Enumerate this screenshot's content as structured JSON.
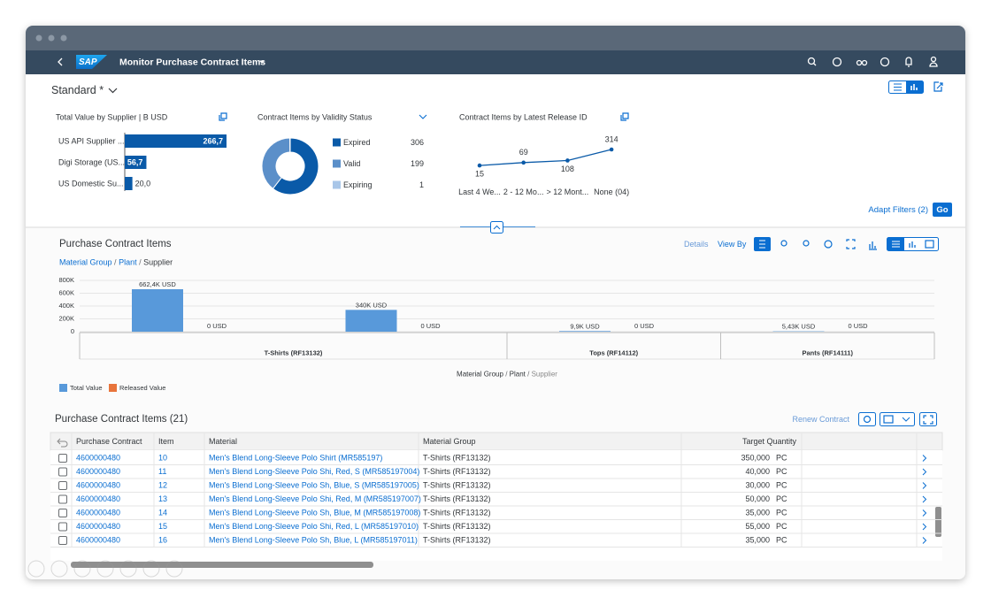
{
  "shell": {
    "logo": "SAP",
    "title": "Monitor Purchase Contract Items"
  },
  "header": {
    "variant": "Standard *",
    "adapt_filters": "Adapt Filters (2)",
    "go": "Go"
  },
  "cards": [
    {
      "title": "Total Value by Supplier  | B USD",
      "categories": [
        "US API Supplier ...",
        "Digi Storage (US...",
        "US Domestic Su..."
      ],
      "values": [
        266.7,
        56.7,
        20.0
      ],
      "value_labels": [
        "266,7",
        "56,7",
        "20,0"
      ],
      "color": "#0a5aa8"
    },
    {
      "title": "Contract Items by Validity Status",
      "categories": [
        "Expired",
        "Valid",
        "Expiring"
      ],
      "values": [
        306,
        199,
        1
      ],
      "colors": [
        "#0a5aa8",
        "#5b8fc9",
        "#a9c6e8"
      ]
    },
    {
      "title": "Contract Items by Latest Release ID",
      "categories": [
        "Last 4 We...",
        "2 - 12 Mo...",
        "> 12 Mont...",
        "None (04)"
      ],
      "values": [
        15,
        69,
        108,
        314
      ],
      "color": "#0a5aa8"
    }
  ],
  "chart": {
    "title": "Purchase Contract Items",
    "breadcrumb": [
      "Material Group",
      "Plant",
      "Supplier"
    ],
    "separator": "/",
    "toolbar": {
      "details": "Details",
      "view_by": "View By"
    },
    "ylim": [
      0,
      800000
    ],
    "yticks": [
      0,
      {
        "value": 200000,
        "label": "200K"
      },
      {
        "value": 400000,
        "label": "400K"
      },
      {
        "value": 600000,
        "label": "600K"
      },
      {
        "value": 800000,
        "label": "800K"
      }
    ],
    "grid": true,
    "series": [
      {
        "name": "Total Value",
        "color": "#5899da"
      },
      {
        "name": "Released Value",
        "color": "#e8743b"
      }
    ],
    "groups": [
      {
        "label": "T-Shirts (RF13132)",
        "total": [
          662400,
          340000
        ],
        "total_labels": [
          "662,4K USD",
          "340K USD"
        ],
        "released": [
          0,
          0
        ],
        "released_labels": [
          "0 USD",
          "0 USD"
        ]
      },
      {
        "label": "Tops (RF14112)",
        "total": [
          9900
        ],
        "total_labels": [
          "9,9K USD"
        ],
        "released": [
          0
        ],
        "released_labels": [
          "0 USD"
        ]
      },
      {
        "label": "Pants (RF14111)",
        "total": [
          5430
        ],
        "total_labels": [
          "5,43K USD"
        ],
        "released": [
          0
        ],
        "released_labels": [
          "0 USD"
        ]
      }
    ]
  },
  "table": {
    "title": "Purchase Contract Items (21)",
    "action": "Renew Contract",
    "columns": [
      "Purchase Contract",
      "Item",
      "Material",
      "Material Group",
      "Target Quantity"
    ],
    "rows": [
      [
        "4600000480",
        "10",
        "Men's Blend Long-Sleeve Polo Shirt (MR585197)",
        "T-Shirts (RF13132)",
        "350,000",
        "PC"
      ],
      [
        "4600000480",
        "11",
        "Men's Blend Long-Sleeve Polo Shi, Red, S (MR585197004)",
        "T-Shirts (RF13132)",
        "40,000",
        "PC"
      ],
      [
        "4600000480",
        "12",
        "Men's Blend Long-Sleeve Polo Sh, Blue, S (MR585197005)",
        "T-Shirts (RF13132)",
        "30,000",
        "PC"
      ],
      [
        "4600000480",
        "13",
        "Men's Blend Long-Sleeve Polo Shi, Red, M (MR585197007)",
        "T-Shirts (RF13132)",
        "50,000",
        "PC"
      ],
      [
        "4600000480",
        "14",
        "Men's Blend Long-Sleeve Polo Sh, Blue, M (MR585197008)",
        "T-Shirts (RF13132)",
        "35,000",
        "PC"
      ],
      [
        "4600000480",
        "15",
        "Men's Blend Long-Sleeve Polo Shi, Red, L (MR585197010)",
        "T-Shirts (RF13132)",
        "55,000",
        "PC"
      ],
      [
        "4600000480",
        "16",
        "Men's Blend Long-Sleeve Polo Sh, Blue, L (MR585197011)",
        "T-Shirts (RF13132)",
        "35,000",
        "PC"
      ]
    ]
  }
}
